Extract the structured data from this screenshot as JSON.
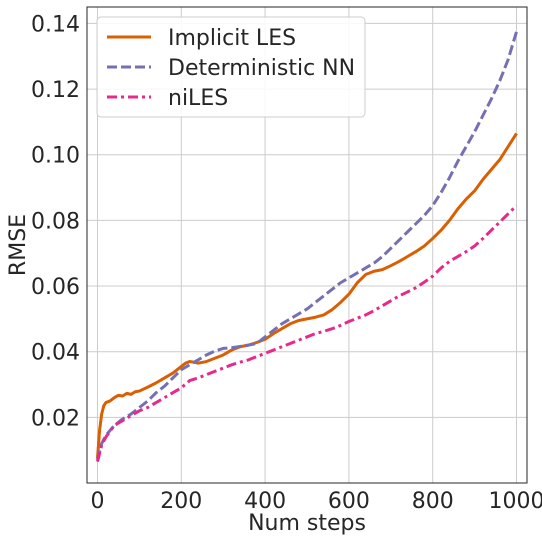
{
  "chart_data": {
    "type": "line",
    "xlabel": "Num steps",
    "ylabel": "RMSE",
    "xlim": [
      -25,
      1025
    ],
    "ylim": [
      0,
      0.145
    ],
    "xticks": [
      0,
      200,
      400,
      600,
      800,
      1000
    ],
    "xtick_labels": [
      "0",
      "200",
      "400",
      "600",
      "800",
      "1000"
    ],
    "yticks": [
      0.02,
      0.04,
      0.06,
      0.08,
      0.1,
      0.12,
      0.14
    ],
    "ytick_labels": [
      "0.02",
      "0.04",
      "0.06",
      "0.08",
      "0.10",
      "0.12",
      "0.14"
    ],
    "grid": true,
    "legend_position": "top-left",
    "series": [
      {
        "name": "Implicit LES",
        "color": "#d95f02",
        "dash": "solid",
        "x": [
          0,
          5,
          10,
          15,
          20,
          30,
          40,
          50,
          60,
          70,
          80,
          90,
          100,
          120,
          140,
          160,
          180,
          200,
          210,
          220,
          230,
          240,
          260,
          280,
          300,
          320,
          340,
          360,
          380,
          400,
          420,
          440,
          460,
          480,
          500,
          520,
          540,
          560,
          580,
          600,
          620,
          640,
          660,
          680,
          700,
          720,
          740,
          760,
          780,
          800,
          820,
          840,
          860,
          880,
          900,
          920,
          940,
          960,
          980,
          1000
        ],
        "y": [
          0.0075,
          0.016,
          0.021,
          0.0235,
          0.0245,
          0.025,
          0.026,
          0.0267,
          0.0265,
          0.0273,
          0.027,
          0.0278,
          0.028,
          0.0292,
          0.0305,
          0.032,
          0.0335,
          0.0355,
          0.0365,
          0.037,
          0.0368,
          0.0365,
          0.037,
          0.038,
          0.039,
          0.0405,
          0.0415,
          0.042,
          0.0428,
          0.0438,
          0.0455,
          0.047,
          0.0485,
          0.0495,
          0.05,
          0.0505,
          0.0512,
          0.0528,
          0.055,
          0.0575,
          0.061,
          0.0635,
          0.0645,
          0.065,
          0.0662,
          0.0675,
          0.069,
          0.0705,
          0.0722,
          0.0745,
          0.077,
          0.08,
          0.0835,
          0.0865,
          0.089,
          0.0925,
          0.0955,
          0.0985,
          0.1025,
          0.1065
        ]
      },
      {
        "name": "Deterministic NN",
        "color": "#7570b3",
        "dash": "dashed",
        "x": [
          0,
          10,
          20,
          40,
          60,
          80,
          100,
          120,
          140,
          160,
          180,
          200,
          220,
          240,
          260,
          280,
          300,
          320,
          340,
          360,
          380,
          400,
          420,
          440,
          460,
          480,
          500,
          520,
          540,
          560,
          580,
          600,
          620,
          640,
          660,
          680,
          700,
          720,
          740,
          760,
          780,
          800,
          820,
          840,
          860,
          880,
          900,
          920,
          940,
          960,
          980,
          1000
        ],
        "y": [
          0.007,
          0.012,
          0.0145,
          0.0175,
          0.0195,
          0.021,
          0.023,
          0.025,
          0.0275,
          0.0295,
          0.032,
          0.0345,
          0.036,
          0.0375,
          0.039,
          0.0402,
          0.041,
          0.0412,
          0.0416,
          0.042,
          0.0425,
          0.0445,
          0.0465,
          0.0485,
          0.05,
          0.0515,
          0.053,
          0.055,
          0.057,
          0.059,
          0.061,
          0.0625,
          0.064,
          0.0655,
          0.067,
          0.069,
          0.0715,
          0.074,
          0.0765,
          0.079,
          0.0815,
          0.0845,
          0.0885,
          0.093,
          0.098,
          0.1025,
          0.107,
          0.112,
          0.117,
          0.1225,
          0.129,
          0.1375
        ]
      },
      {
        "name": "niLES",
        "color": "#e7298a",
        "dash": "dashdot",
        "x": [
          0,
          10,
          20,
          40,
          60,
          80,
          100,
          120,
          140,
          160,
          180,
          200,
          220,
          240,
          260,
          280,
          300,
          320,
          340,
          360,
          380,
          400,
          420,
          440,
          460,
          480,
          500,
          520,
          540,
          560,
          580,
          600,
          620,
          640,
          660,
          680,
          700,
          720,
          740,
          760,
          780,
          800,
          820,
          840,
          860,
          880,
          900,
          920,
          940,
          960,
          980,
          1000
        ],
        "y": [
          0.0065,
          0.0115,
          0.014,
          0.0175,
          0.019,
          0.0205,
          0.022,
          0.023,
          0.0245,
          0.026,
          0.0275,
          0.029,
          0.0312,
          0.032,
          0.033,
          0.034,
          0.035,
          0.036,
          0.0368,
          0.0375,
          0.0385,
          0.0395,
          0.0405,
          0.0415,
          0.0425,
          0.0435,
          0.0445,
          0.0455,
          0.0462,
          0.047,
          0.048,
          0.0492,
          0.0502,
          0.0512,
          0.0525,
          0.054,
          0.0555,
          0.057,
          0.0582,
          0.0595,
          0.0612,
          0.063,
          0.0655,
          0.0675,
          0.069,
          0.0705,
          0.0722,
          0.0745,
          0.077,
          0.0795,
          0.082,
          0.0845
        ]
      }
    ]
  }
}
